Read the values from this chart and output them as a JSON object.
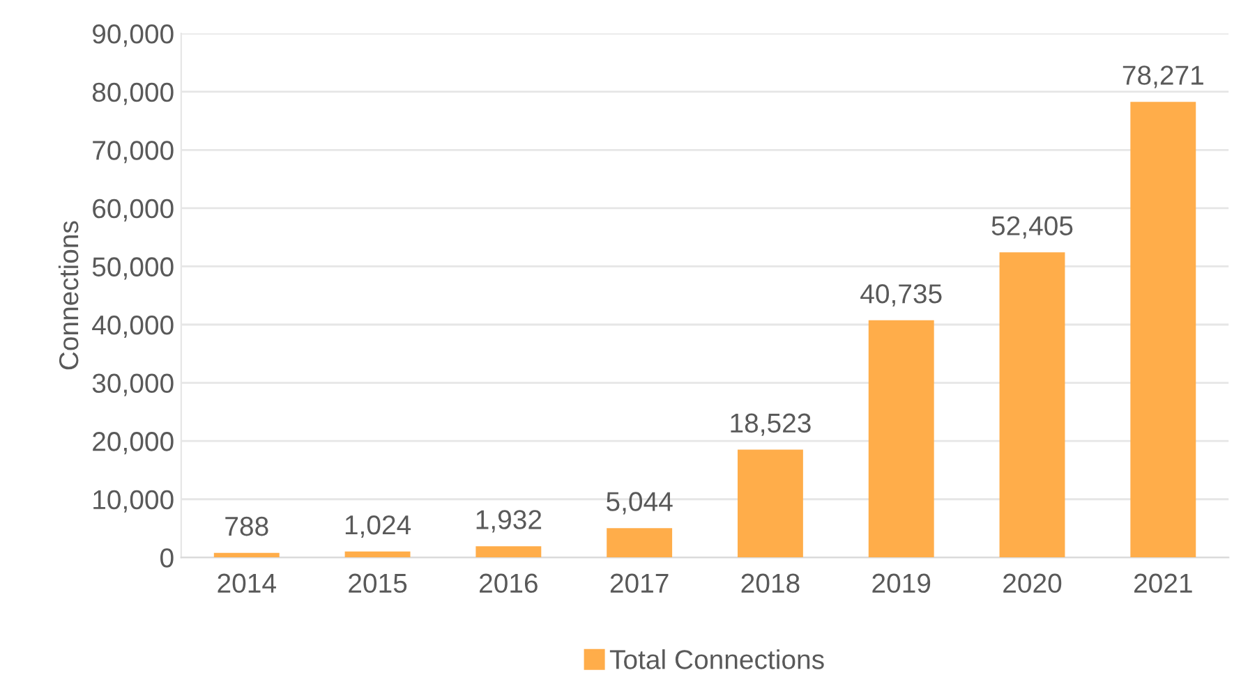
{
  "chart_data": {
    "type": "bar",
    "ylabel": "Connections",
    "categories": [
      "2014",
      "2015",
      "2016",
      "2017",
      "2018",
      "2019",
      "2020",
      "2021"
    ],
    "series": [
      {
        "name": "Total Connections",
        "color": "#ffad4a",
        "values": [
          788,
          1024,
          1932,
          5044,
          18523,
          40735,
          52405,
          78271
        ],
        "value_labels": [
          "788",
          "1,024",
          "1,932",
          "5,044",
          "18,523",
          "40,735",
          "52,405",
          "78,271"
        ]
      }
    ],
    "ylim": [
      0,
      90000
    ],
    "yticks": [
      {
        "value": 0,
        "label": "0"
      },
      {
        "value": 10000,
        "label": "10,000"
      },
      {
        "value": 20000,
        "label": "20,000"
      },
      {
        "value": 30000,
        "label": "30,000"
      },
      {
        "value": 40000,
        "label": "40,000"
      },
      {
        "value": 50000,
        "label": "50,000"
      },
      {
        "value": 60000,
        "label": "60,000"
      },
      {
        "value": 70000,
        "label": "70,000"
      },
      {
        "value": 80000,
        "label": "80,000"
      },
      {
        "value": 90000,
        "label": "90,000"
      }
    ],
    "grid": "y",
    "legend": "bottom"
  }
}
